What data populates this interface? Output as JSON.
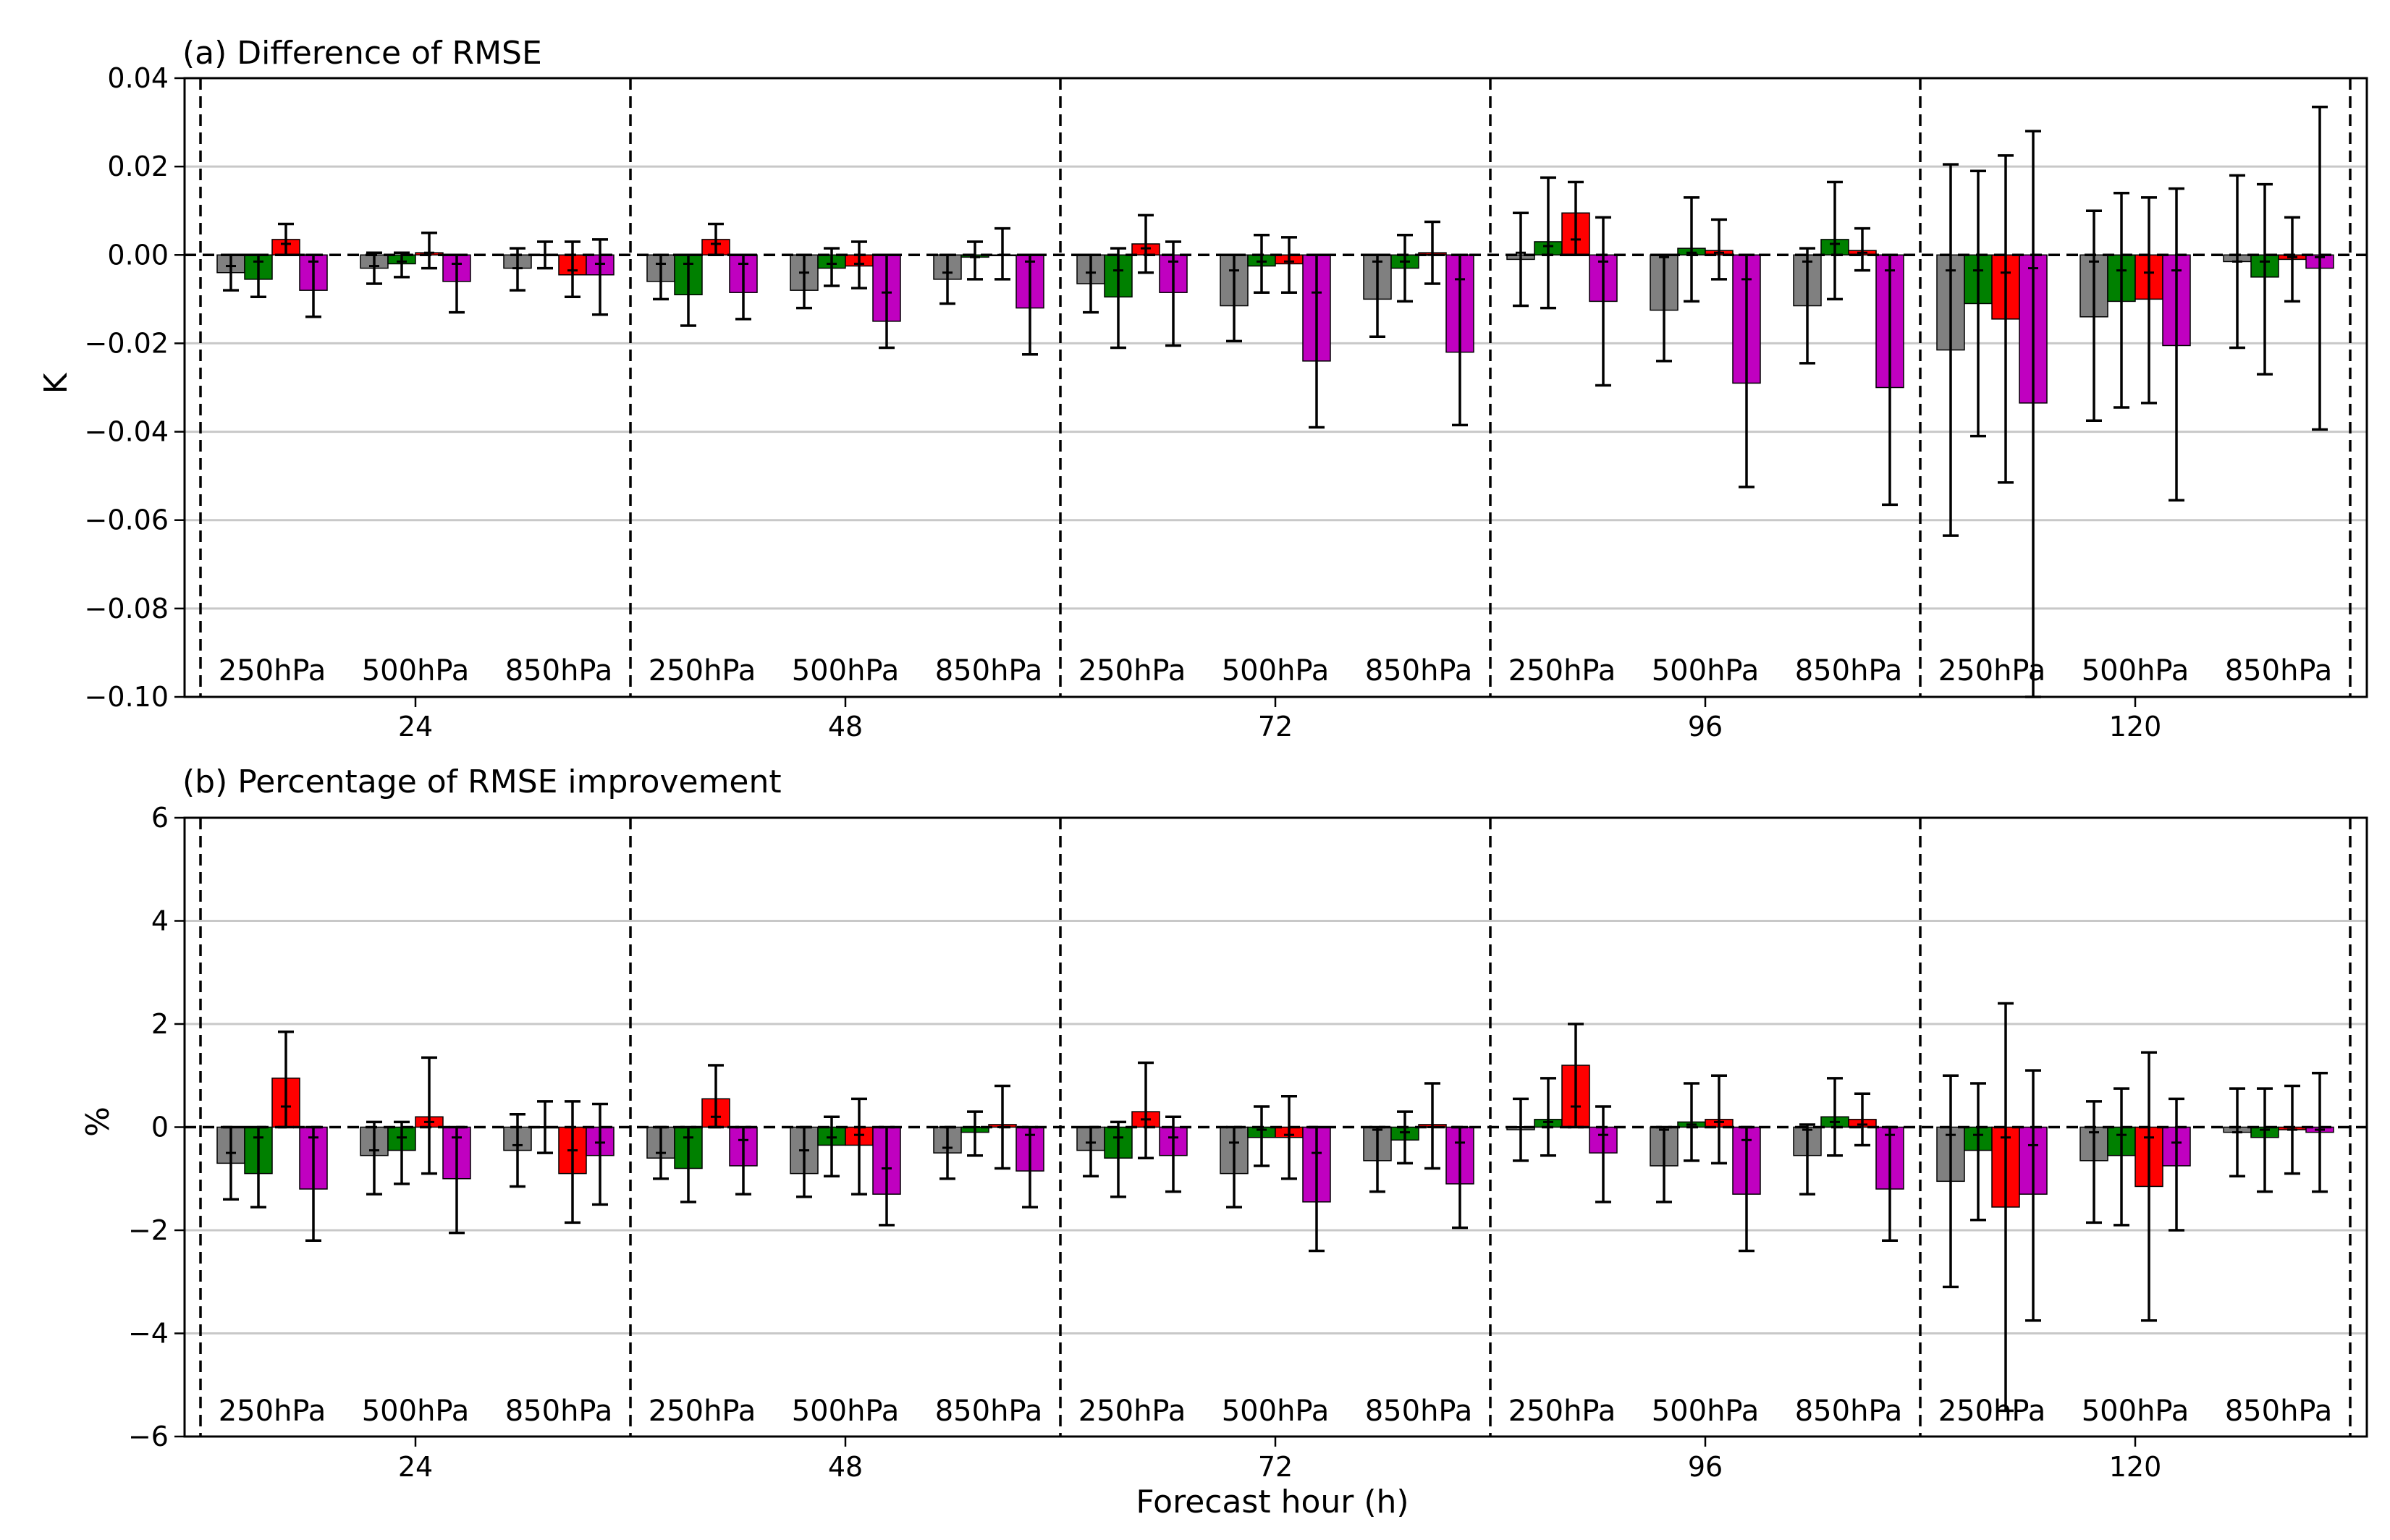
{
  "xlabel": "Forecast hour (h)",
  "forecast_hours": [
    "24",
    "48",
    "72",
    "96",
    "120"
  ],
  "levels": [
    "250hPa",
    "500hPa",
    "850hPa"
  ],
  "colors": {
    "series": [
      "#808080",
      "#008000",
      "#ff0000",
      "#c000c0"
    ],
    "grid": "#c8c8c8",
    "errorbar": "#000000"
  },
  "chart_data": [
    {
      "type": "bar",
      "title": "(a) Difference of RMSE",
      "ylabel": "K",
      "ylim": [
        -0.1,
        0.04
      ],
      "yticks": [
        0.04,
        0.02,
        0.0,
        -0.02,
        -0.04,
        -0.06,
        -0.08,
        -0.1
      ],
      "ytick_labels": [
        "0.04",
        "0.02",
        "0.00",
        "−0.02",
        "−0.04",
        "−0.06",
        "−0.08",
        "−0.10"
      ],
      "grid": true,
      "categories": [
        "24h 250hPa",
        "24h 500hPa",
        "24h 850hPa",
        "48h 250hPa",
        "48h 500hPa",
        "48h 850hPa",
        "72h 250hPa",
        "72h 500hPa",
        "72h 850hPa",
        "96h 250hPa",
        "96h 500hPa",
        "96h 850hPa",
        "120h 250hPa",
        "120h 500hPa",
        "120h 850hPa"
      ],
      "series": [
        {
          "name": "series 1 (gray)",
          "values": [
            -0.004,
            -0.003,
            -0.003,
            -0.006,
            -0.008,
            -0.0055,
            -0.0065,
            -0.0115,
            -0.01,
            -0.001,
            -0.0125,
            -0.0115,
            -0.0215,
            -0.014,
            -0.0015
          ],
          "err_low": [
            -0.008,
            -0.0065,
            -0.008,
            -0.01,
            -0.012,
            -0.011,
            -0.013,
            -0.0195,
            -0.0185,
            -0.0115,
            -0.024,
            -0.0245,
            -0.0635,
            -0.0375,
            -0.021
          ],
          "err_high": [
            0.0,
            0.0005,
            0.0015,
            0.0,
            0.0,
            0.0,
            0.0,
            0.0,
            0.0,
            0.0095,
            0.0,
            0.0015,
            0.0205,
            0.01,
            0.018
          ],
          "median": [
            -0.0025,
            -0.0025,
            -0.003,
            -0.002,
            -0.004,
            -0.004,
            -0.004,
            -0.0035,
            -0.0015,
            0.0005,
            -0.0005,
            -0.0015,
            -0.0035,
            -0.0015,
            -0.0015
          ]
        },
        {
          "name": "series 2 (green)",
          "values": [
            -0.0055,
            -0.002,
            0.0,
            -0.009,
            -0.003,
            -0.0005,
            -0.0095,
            -0.0025,
            -0.003,
            0.003,
            0.0015,
            0.0035,
            -0.011,
            -0.0105,
            -0.005
          ],
          "err_low": [
            -0.0095,
            -0.005,
            -0.003,
            -0.016,
            -0.007,
            -0.0055,
            -0.021,
            -0.0085,
            -0.0105,
            -0.012,
            -0.0105,
            -0.01,
            -0.041,
            -0.0345,
            -0.027
          ],
          "err_high": [
            0.0,
            0.0005,
            0.003,
            0.0,
            0.0015,
            0.003,
            0.0015,
            0.0045,
            0.0045,
            0.0175,
            0.013,
            0.0165,
            0.019,
            0.014,
            0.016
          ],
          "median": [
            -0.0015,
            -0.0015,
            0.0,
            -0.002,
            -0.002,
            -0.0005,
            -0.0035,
            -0.0015,
            -0.0015,
            0.002,
            0.0005,
            0.0025,
            -0.0035,
            -0.0035,
            -0.0015
          ]
        },
        {
          "name": "series 3 (red)",
          "values": [
            0.0035,
            0.0005,
            -0.0045,
            0.0035,
            -0.0025,
            0.0,
            0.0025,
            -0.002,
            0.0005,
            0.0095,
            0.001,
            0.001,
            -0.0145,
            -0.01,
            -0.001
          ],
          "err_low": [
            0.0,
            -0.003,
            -0.0095,
            0.0,
            -0.0075,
            -0.0055,
            -0.004,
            -0.0085,
            -0.0065,
            0.0,
            -0.0055,
            -0.0035,
            -0.0515,
            -0.0335,
            -0.0105
          ],
          "err_high": [
            0.007,
            0.005,
            0.003,
            0.007,
            0.003,
            0.006,
            0.009,
            0.004,
            0.0075,
            0.0165,
            0.008,
            0.006,
            0.0225,
            0.013,
            0.0085
          ],
          "median": [
            0.0025,
            0.0005,
            -0.0035,
            0.0025,
            -0.002,
            0.0,
            0.0015,
            -0.0015,
            0.0,
            0.0035,
            0.0005,
            0.0005,
            -0.004,
            -0.004,
            -0.0005
          ]
        },
        {
          "name": "series 4 (magenta)",
          "values": [
            -0.008,
            -0.006,
            -0.0045,
            -0.0085,
            -0.015,
            -0.012,
            -0.0085,
            -0.024,
            -0.022,
            -0.0105,
            -0.029,
            -0.03,
            -0.0335,
            -0.0205,
            -0.003
          ],
          "err_low": [
            -0.014,
            -0.013,
            -0.0135,
            -0.0145,
            -0.021,
            -0.0225,
            -0.0205,
            -0.039,
            -0.0385,
            -0.0295,
            -0.0525,
            -0.0565,
            -0.1,
            -0.0555,
            -0.0395
          ],
          "err_high": [
            0.0,
            0.0,
            0.0035,
            0.0,
            0.0,
            0.0,
            0.003,
            0.0,
            0.0,
            0.0085,
            0.0,
            0.0,
            0.028,
            0.015,
            0.0335
          ],
          "median": [
            -0.0015,
            -0.002,
            -0.002,
            -0.002,
            -0.0085,
            -0.0015,
            -0.0015,
            -0.0085,
            -0.0055,
            -0.0015,
            -0.0055,
            -0.0035,
            -0.003,
            -0.0035,
            -0.0005
          ]
        }
      ]
    },
    {
      "type": "bar",
      "title": "(b) Percentage of RMSE improvement",
      "ylabel": "%",
      "ylim": [
        -6,
        6
      ],
      "yticks": [
        6,
        4,
        2,
        0,
        -2,
        -4,
        -6
      ],
      "ytick_labels": [
        "6",
        "4",
        "2",
        "0",
        "−2",
        "−4",
        "−6"
      ],
      "grid": true,
      "categories": [
        "24h 250hPa",
        "24h 500hPa",
        "24h 850hPa",
        "48h 250hPa",
        "48h 500hPa",
        "48h 850hPa",
        "72h 250hPa",
        "72h 500hPa",
        "72h 850hPa",
        "96h 250hPa",
        "96h 500hPa",
        "96h 850hPa",
        "120h 250hPa",
        "120h 500hPa",
        "120h 850hPa"
      ],
      "series": [
        {
          "name": "series 1 (gray)",
          "values": [
            -0.7,
            -0.55,
            -0.45,
            -0.6,
            -0.9,
            -0.5,
            -0.45,
            -0.9,
            -0.65,
            -0.05,
            -0.75,
            -0.55,
            -1.05,
            -0.65,
            -0.1
          ],
          "err_low": [
            -1.4,
            -1.3,
            -1.15,
            -1.0,
            -1.35,
            -1.0,
            -0.95,
            -1.55,
            -1.25,
            -0.65,
            -1.45,
            -1.3,
            -3.1,
            -1.85,
            -0.95
          ],
          "err_high": [
            0.0,
            0.1,
            0.25,
            0.0,
            0.0,
            0.0,
            0.0,
            0.0,
            0.0,
            0.55,
            0.0,
            0.05,
            1.0,
            0.5,
            0.75
          ],
          "median": [
            -0.5,
            -0.45,
            -0.35,
            -0.5,
            -0.45,
            -0.4,
            -0.3,
            -0.3,
            -0.05,
            0.0,
            -0.05,
            -0.05,
            -0.15,
            -0.1,
            -0.1
          ]
        },
        {
          "name": "series 2 (green)",
          "values": [
            -0.9,
            -0.45,
            0.0,
            -0.8,
            -0.35,
            -0.1,
            -0.6,
            -0.2,
            -0.25,
            0.15,
            0.1,
            0.2,
            -0.45,
            -0.55,
            -0.2
          ],
          "err_low": [
            -1.55,
            -1.1,
            -0.5,
            -1.45,
            -0.95,
            -0.55,
            -1.35,
            -0.75,
            -0.7,
            -0.55,
            -0.65,
            -0.55,
            -1.8,
            -1.9,
            -1.25
          ],
          "err_high": [
            0.0,
            0.1,
            0.5,
            0.0,
            0.2,
            0.3,
            0.1,
            0.4,
            0.3,
            0.95,
            0.85,
            0.95,
            0.85,
            0.75,
            0.75
          ],
          "median": [
            -0.2,
            -0.2,
            0.0,
            -0.2,
            -0.2,
            0.0,
            -0.2,
            -0.05,
            -0.1,
            0.1,
            0.05,
            0.1,
            -0.15,
            -0.15,
            -0.05
          ]
        },
        {
          "name": "series 3 (red)",
          "values": [
            0.95,
            0.2,
            -0.9,
            0.55,
            -0.35,
            0.05,
            0.3,
            -0.2,
            0.05,
            1.2,
            0.15,
            0.15,
            -1.55,
            -1.15,
            -0.05
          ],
          "err_low": [
            0.0,
            -0.9,
            -1.85,
            0.0,
            -1.3,
            -0.8,
            -0.6,
            -1.0,
            -0.8,
            0.0,
            -0.7,
            -0.35,
            -5.5,
            -3.75,
            -0.9
          ],
          "err_high": [
            1.85,
            1.35,
            0.5,
            1.2,
            0.55,
            0.8,
            1.25,
            0.6,
            0.85,
            2.0,
            1.0,
            0.65,
            2.4,
            1.45,
            0.8
          ],
          "median": [
            0.4,
            0.1,
            -0.45,
            0.2,
            -0.15,
            0.0,
            0.15,
            -0.15,
            0.0,
            0.4,
            0.1,
            0.05,
            -0.2,
            -0.2,
            -0.05
          ]
        },
        {
          "name": "series 4 (magenta)",
          "values": [
            -1.2,
            -1.0,
            -0.55,
            -0.75,
            -1.3,
            -0.85,
            -0.55,
            -1.45,
            -1.1,
            -0.5,
            -1.3,
            -1.2,
            -1.3,
            -0.75,
            -0.1
          ],
          "err_low": [
            -2.2,
            -2.05,
            -1.5,
            -1.3,
            -1.9,
            -1.55,
            -1.25,
            -2.4,
            -1.95,
            -1.45,
            -2.4,
            -2.2,
            -3.75,
            -2.0,
            -1.25
          ],
          "err_high": [
            0.0,
            0.0,
            0.45,
            0.0,
            0.0,
            0.0,
            0.2,
            0.0,
            0.0,
            0.4,
            0.0,
            0.0,
            1.1,
            0.55,
            1.05
          ],
          "median": [
            -0.2,
            -0.2,
            -0.3,
            -0.25,
            -0.8,
            -0.15,
            -0.2,
            -0.5,
            -0.3,
            -0.15,
            -0.25,
            -0.15,
            -0.35,
            -0.3,
            -0.05
          ]
        }
      ]
    }
  ]
}
